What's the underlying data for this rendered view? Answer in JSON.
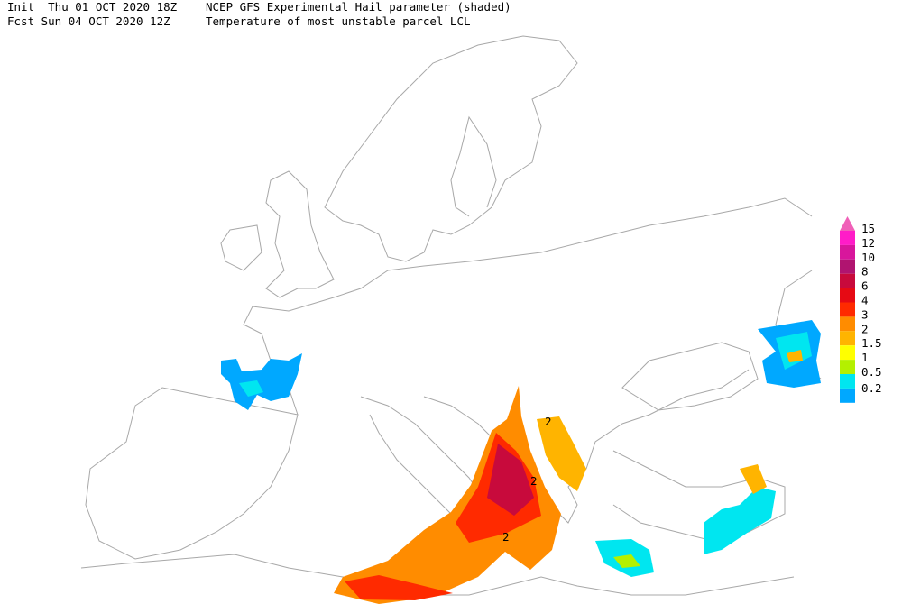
{
  "header": {
    "line1_left": "Init  Thu 01 OCT 2020 18Z",
    "line1_right": "NCEP GFS Experimental Hail parameter (shaded)",
    "line2_left": "Fcst Sun 04 OCT 2020 12Z",
    "line2_right": "Temperature of most unstable parcel LCL"
  },
  "legend": {
    "over_color": "#f060b8",
    "levels": [
      {
        "label": "15",
        "color": "#ff1cc8"
      },
      {
        "label": "12",
        "color": "#d8169c"
      },
      {
        "label": "10",
        "color": "#b01470"
      },
      {
        "label": "8",
        "color": "#c80a3c"
      },
      {
        "label": "6",
        "color": "#e60a14"
      },
      {
        "label": "4",
        "color": "#ff2a00"
      },
      {
        "label": "3",
        "color": "#ff8c00"
      },
      {
        "label": "2",
        "color": "#ffb400"
      },
      {
        "label": "1.5",
        "color": "#ffff00"
      },
      {
        "label": "1",
        "color": "#b4f000"
      },
      {
        "label": "0.5",
        "color": "#00e6f0"
      },
      {
        "label": "0.2",
        "color": "#00a8ff"
      }
    ]
  },
  "contour_labels": [
    "2",
    "2",
    "2"
  ]
}
